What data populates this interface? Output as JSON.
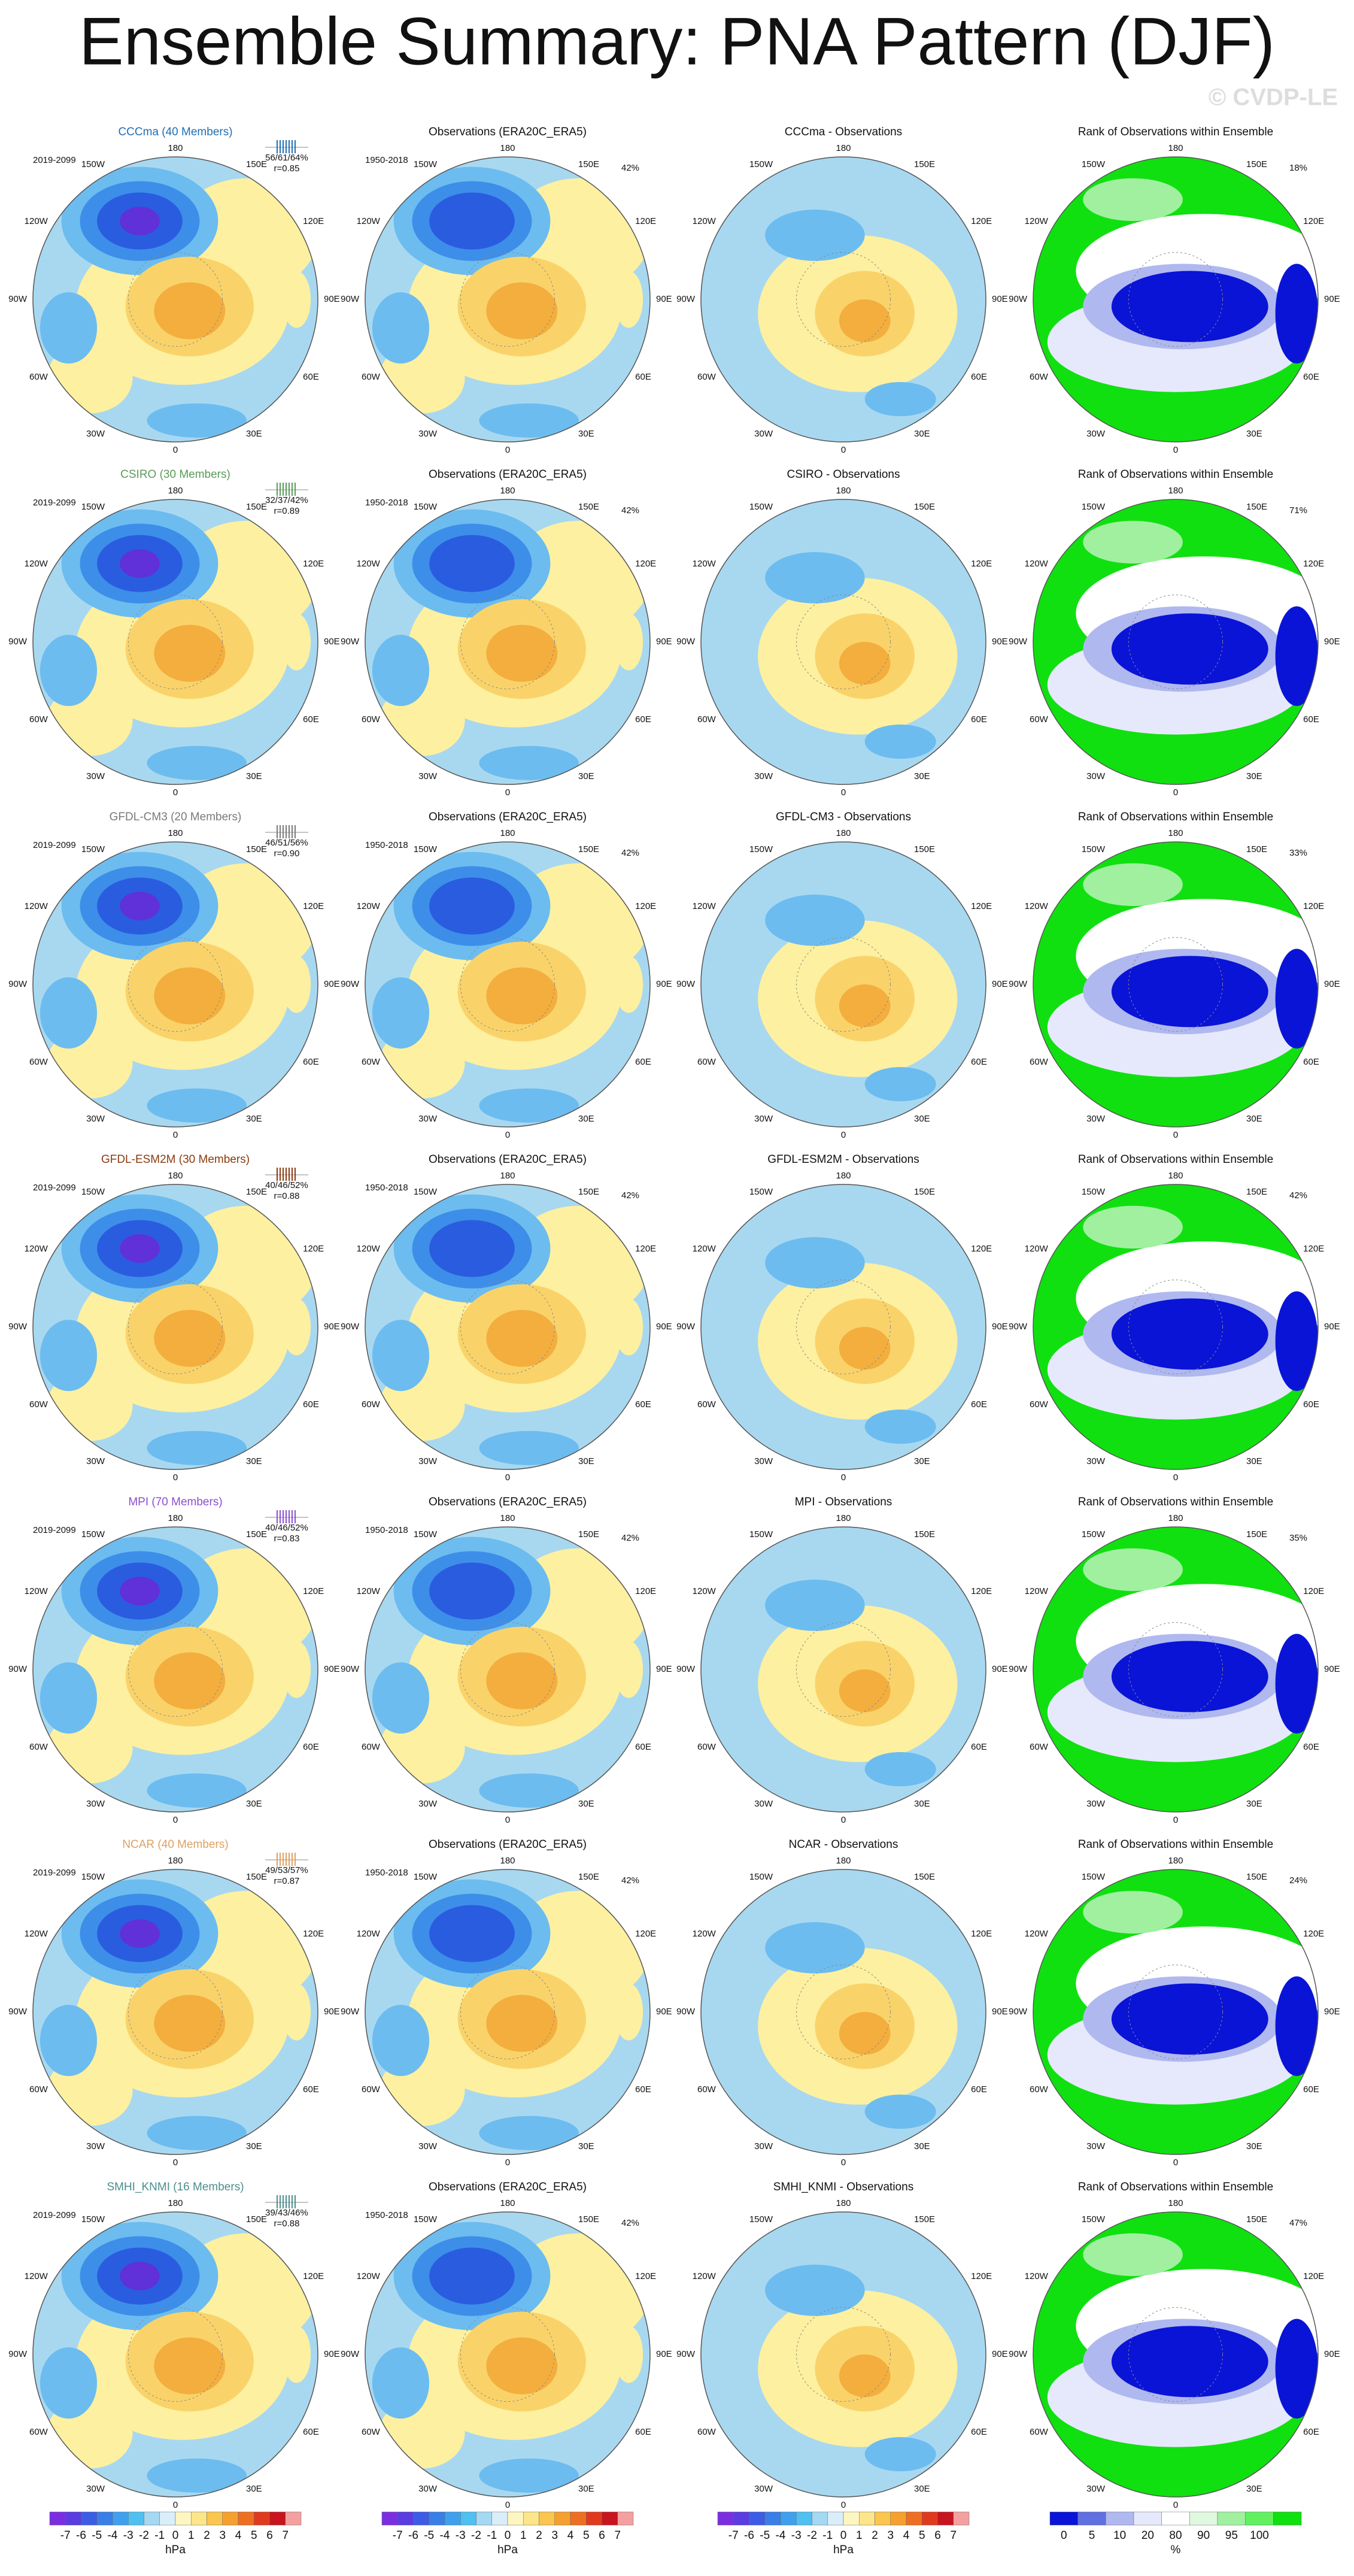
{
  "title": "Ensemble Summary: PNA Pattern (DJF)",
  "watermark": "© CVDP-LE",
  "map_labels": [
    "180",
    "150E",
    "120E",
    "90E",
    "60E",
    "30E",
    "0",
    "30W",
    "60W",
    "90W",
    "120W",
    "150W"
  ],
  "rows": [
    {
      "model": "CCCma (40 Members)",
      "model_color": "#1f6fb4",
      "period": "2019-2099",
      "stats": "56/61/64%",
      "r": "r=0.85",
      "obs_title": "Observations (ERA20C_ERA5)",
      "obs_period": "1950-2018",
      "obs_pct": "42%",
      "diff_title": "CCCma - Observations",
      "rank_title": "Rank of Observations within Ensemble",
      "rank_pct": "18%"
    },
    {
      "model": "CSIRO (30 Members)",
      "model_color": "#5a9a5a",
      "period": "2019-2099",
      "stats": "32/37/42%",
      "r": "r=0.89",
      "obs_title": "Observations (ERA20C_ERA5)",
      "obs_period": "1950-2018",
      "obs_pct": "42%",
      "diff_title": "CSIRO - Observations",
      "rank_title": "Rank of Observations within Ensemble",
      "rank_pct": "71%"
    },
    {
      "model": "GFDL-CM3 (20 Members)",
      "model_color": "#7a7a7a",
      "period": "2019-2099",
      "stats": "46/51/56%",
      "r": "r=0.90",
      "obs_title": "Observations (ERA20C_ERA5)",
      "obs_period": "1950-2018",
      "obs_pct": "42%",
      "diff_title": "GFDL-CM3 - Observations",
      "rank_title": "Rank of Observations within Ensemble",
      "rank_pct": "33%"
    },
    {
      "model": "GFDL-ESM2M (30 Members)",
      "model_color": "#8b3a0f",
      "period": "2019-2099",
      "stats": "40/46/52%",
      "r": "r=0.88",
      "obs_title": "Observations (ERA20C_ERA5)",
      "obs_period": "1950-2018",
      "obs_pct": "42%",
      "diff_title": "GFDL-ESM2M - Observations",
      "rank_title": "Rank of Observations within Ensemble",
      "rank_pct": "42%"
    },
    {
      "model": "MPI (70 Members)",
      "model_color": "#8a4fd0",
      "period": "2019-2099",
      "stats": "40/46/52%",
      "r": "r=0.83",
      "obs_title": "Observations (ERA20C_ERA5)",
      "obs_period": "1950-2018",
      "obs_pct": "42%",
      "diff_title": "MPI - Observations",
      "rank_title": "Rank of Observations within Ensemble",
      "rank_pct": "35%"
    },
    {
      "model": "NCAR (40 Members)",
      "model_color": "#e0a060",
      "period": "2019-2099",
      "stats": "49/53/57%",
      "r": "r=0.87",
      "obs_title": "Observations (ERA20C_ERA5)",
      "obs_period": "1950-2018",
      "obs_pct": "42%",
      "diff_title": "NCAR - Observations",
      "rank_title": "Rank of Observations within Ensemble",
      "rank_pct": "24%"
    },
    {
      "model": "SMHI_KNMI (16 Members)",
      "model_color": "#4a8f8f",
      "period": "2019-2099",
      "stats": "39/43/46%",
      "r": "r=0.88",
      "obs_title": "Observations (ERA20C_ERA5)",
      "obs_period": "1950-2018",
      "obs_pct": "42%",
      "diff_title": "SMHI_KNMI - Observations",
      "rank_title": "Rank of Observations within Ensemble",
      "rank_pct": "47%"
    }
  ],
  "pressure_colorbar": {
    "ticks": [
      "-7",
      "-6",
      "-5",
      "-4",
      "-3",
      "-2",
      "-1",
      "0",
      "1",
      "2",
      "3",
      "4",
      "5",
      "6",
      "7"
    ],
    "unit": "hPa"
  },
  "rank_colorbar": {
    "ticks": [
      "0",
      "5",
      "10",
      "20",
      "80",
      "90",
      "95",
      "100"
    ],
    "unit": "%"
  }
}
